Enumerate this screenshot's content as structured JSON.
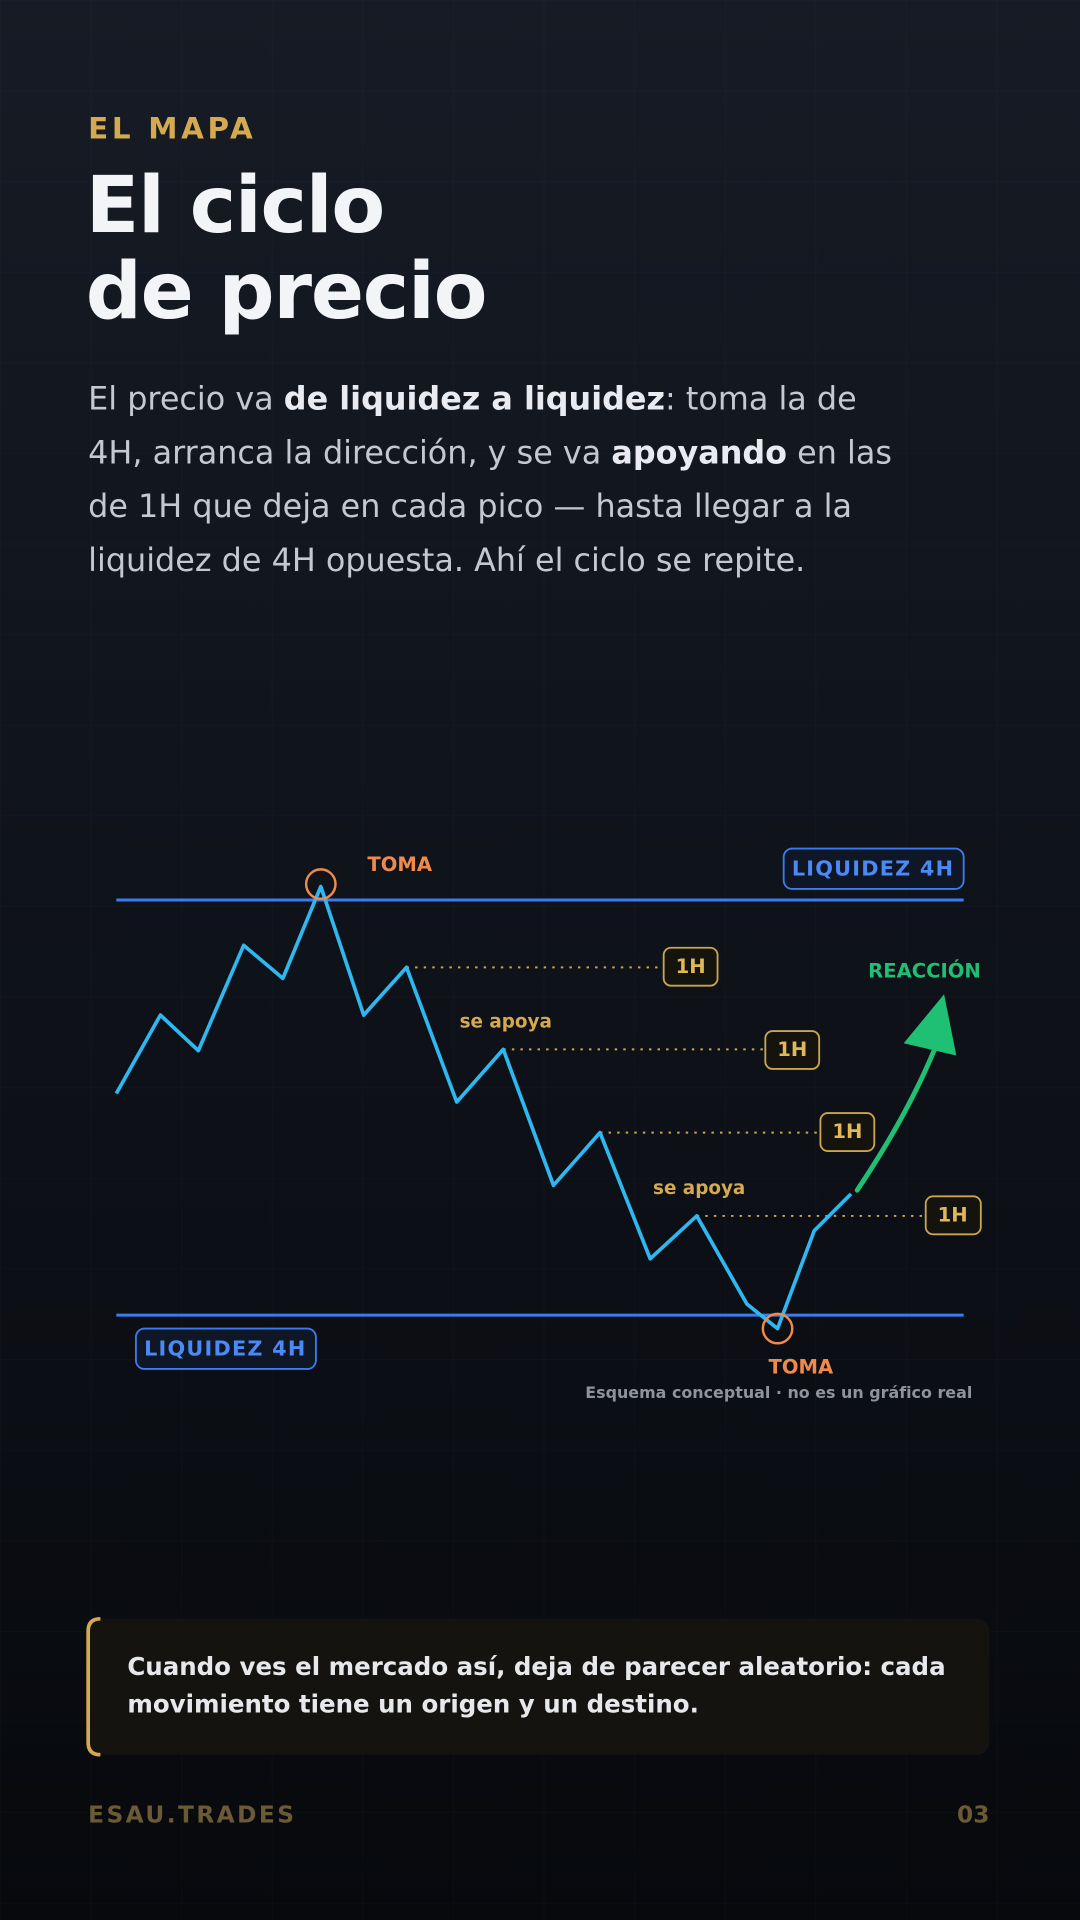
{
  "header": {
    "kicker": "EL MAPA",
    "title_lines": [
      "El ciclo",
      "de precio"
    ]
  },
  "intro": {
    "lines": [
      [
        {
          "text": "El precio va ",
          "bold": false
        },
        {
          "text": "de liquidez a liquidez",
          "bold": true
        },
        {
          "text": ": toma la de",
          "bold": false
        }
      ],
      [
        {
          "text": "4H, arranca la dirección, y se va ",
          "bold": false
        },
        {
          "text": "apoyando",
          "bold": true
        },
        {
          "text": " en las",
          "bold": false
        }
      ],
      [
        {
          "text": "de 1H que deja en cada pico — hasta llegar a la",
          "bold": false
        }
      ],
      [
        {
          "text": "liquidez de 4H opuesta. Ahí el ciclo se repite.",
          "bold": false
        }
      ]
    ]
  },
  "diagram": {
    "top_level_label": "LIQUIDEZ 4H",
    "bottom_level_label": "LIQUIDEZ 4H",
    "top_sweep_label": "TOMA",
    "bottom_sweep_label": "TOMA",
    "reaction_label": "REACCIÓN",
    "support_labels": [
      "se apoya",
      "se apoya"
    ],
    "h1_labels": [
      "1H",
      "1H",
      "1H",
      "1H"
    ],
    "caption": "Esquema conceptual · no es un gráfico real"
  },
  "quote": {
    "lines": [
      "Cuando ves el mercado así, deja de parecer aleatorio: cada",
      "movimiento tiene un origen y un destino."
    ]
  },
  "footer": {
    "brand": "ESAU.TRADES",
    "page": "03"
  }
}
